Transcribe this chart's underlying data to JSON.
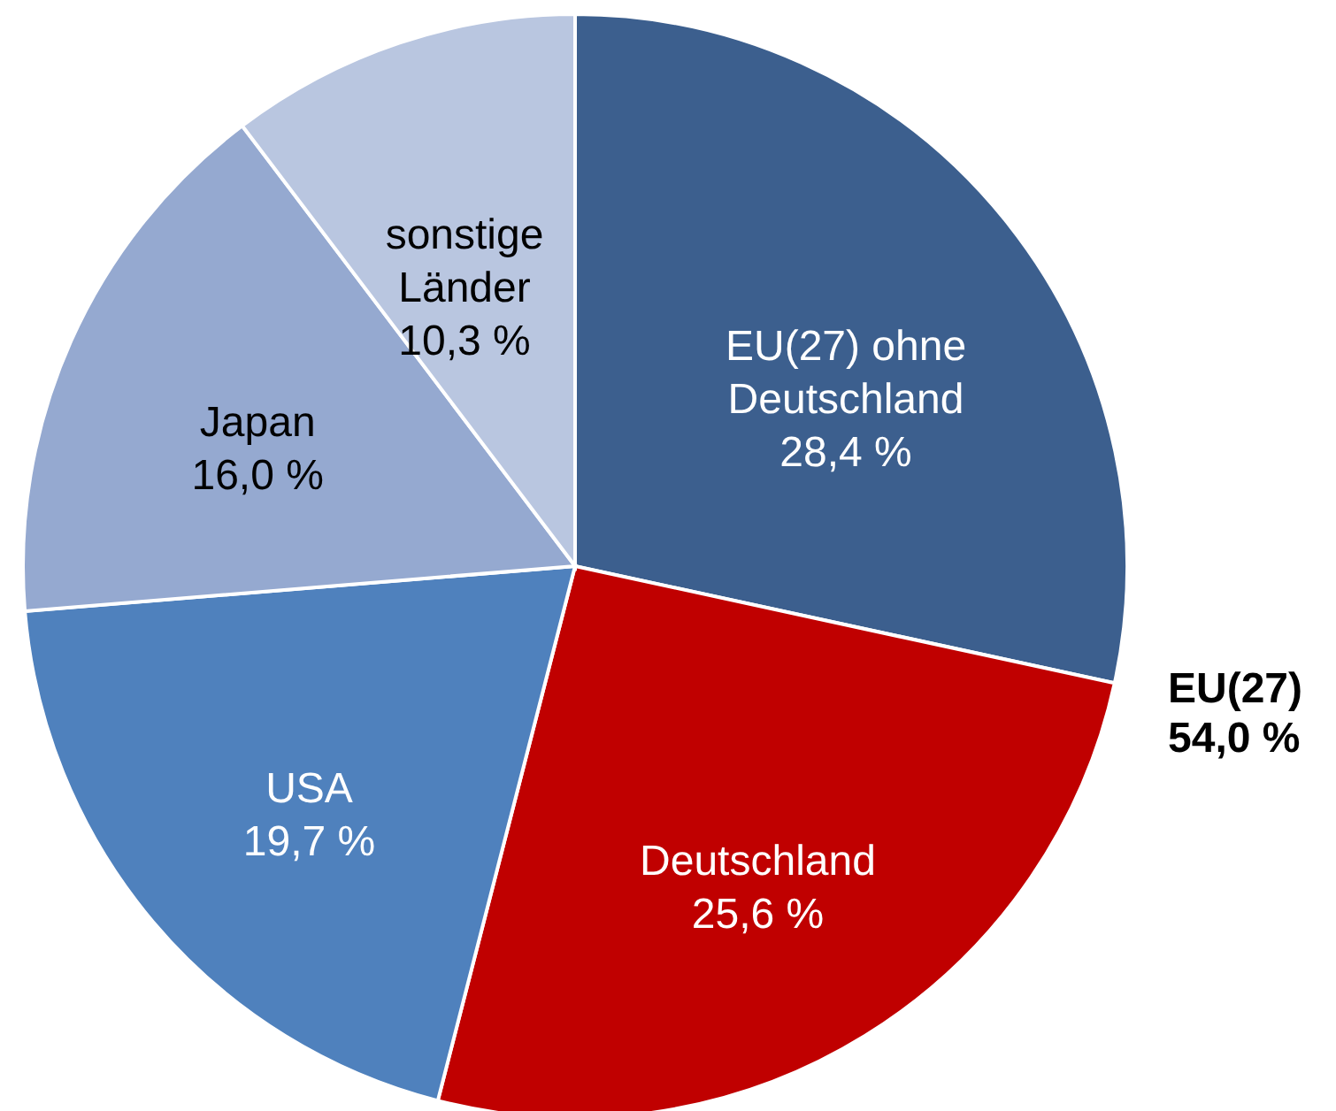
{
  "chart_data": {
    "type": "pie",
    "categories": [
      "EU(27) ohne\nDeutschland",
      "Deutschland",
      "USA",
      "Japan",
      "sonstige\nLänder"
    ],
    "values": [
      28.4,
      25.6,
      19.7,
      16.0,
      10.3
    ],
    "value_labels": [
      "28,4 %",
      "25,6 %",
      "19,7 %",
      "16,0 %",
      "10,3 %"
    ],
    "colors": [
      "#3c5f8e",
      "#c00000",
      "#4f81bd",
      "#95a9d0",
      "#b9c6e0"
    ],
    "annotations": [
      "EU(27)\n54,0 %"
    ]
  }
}
